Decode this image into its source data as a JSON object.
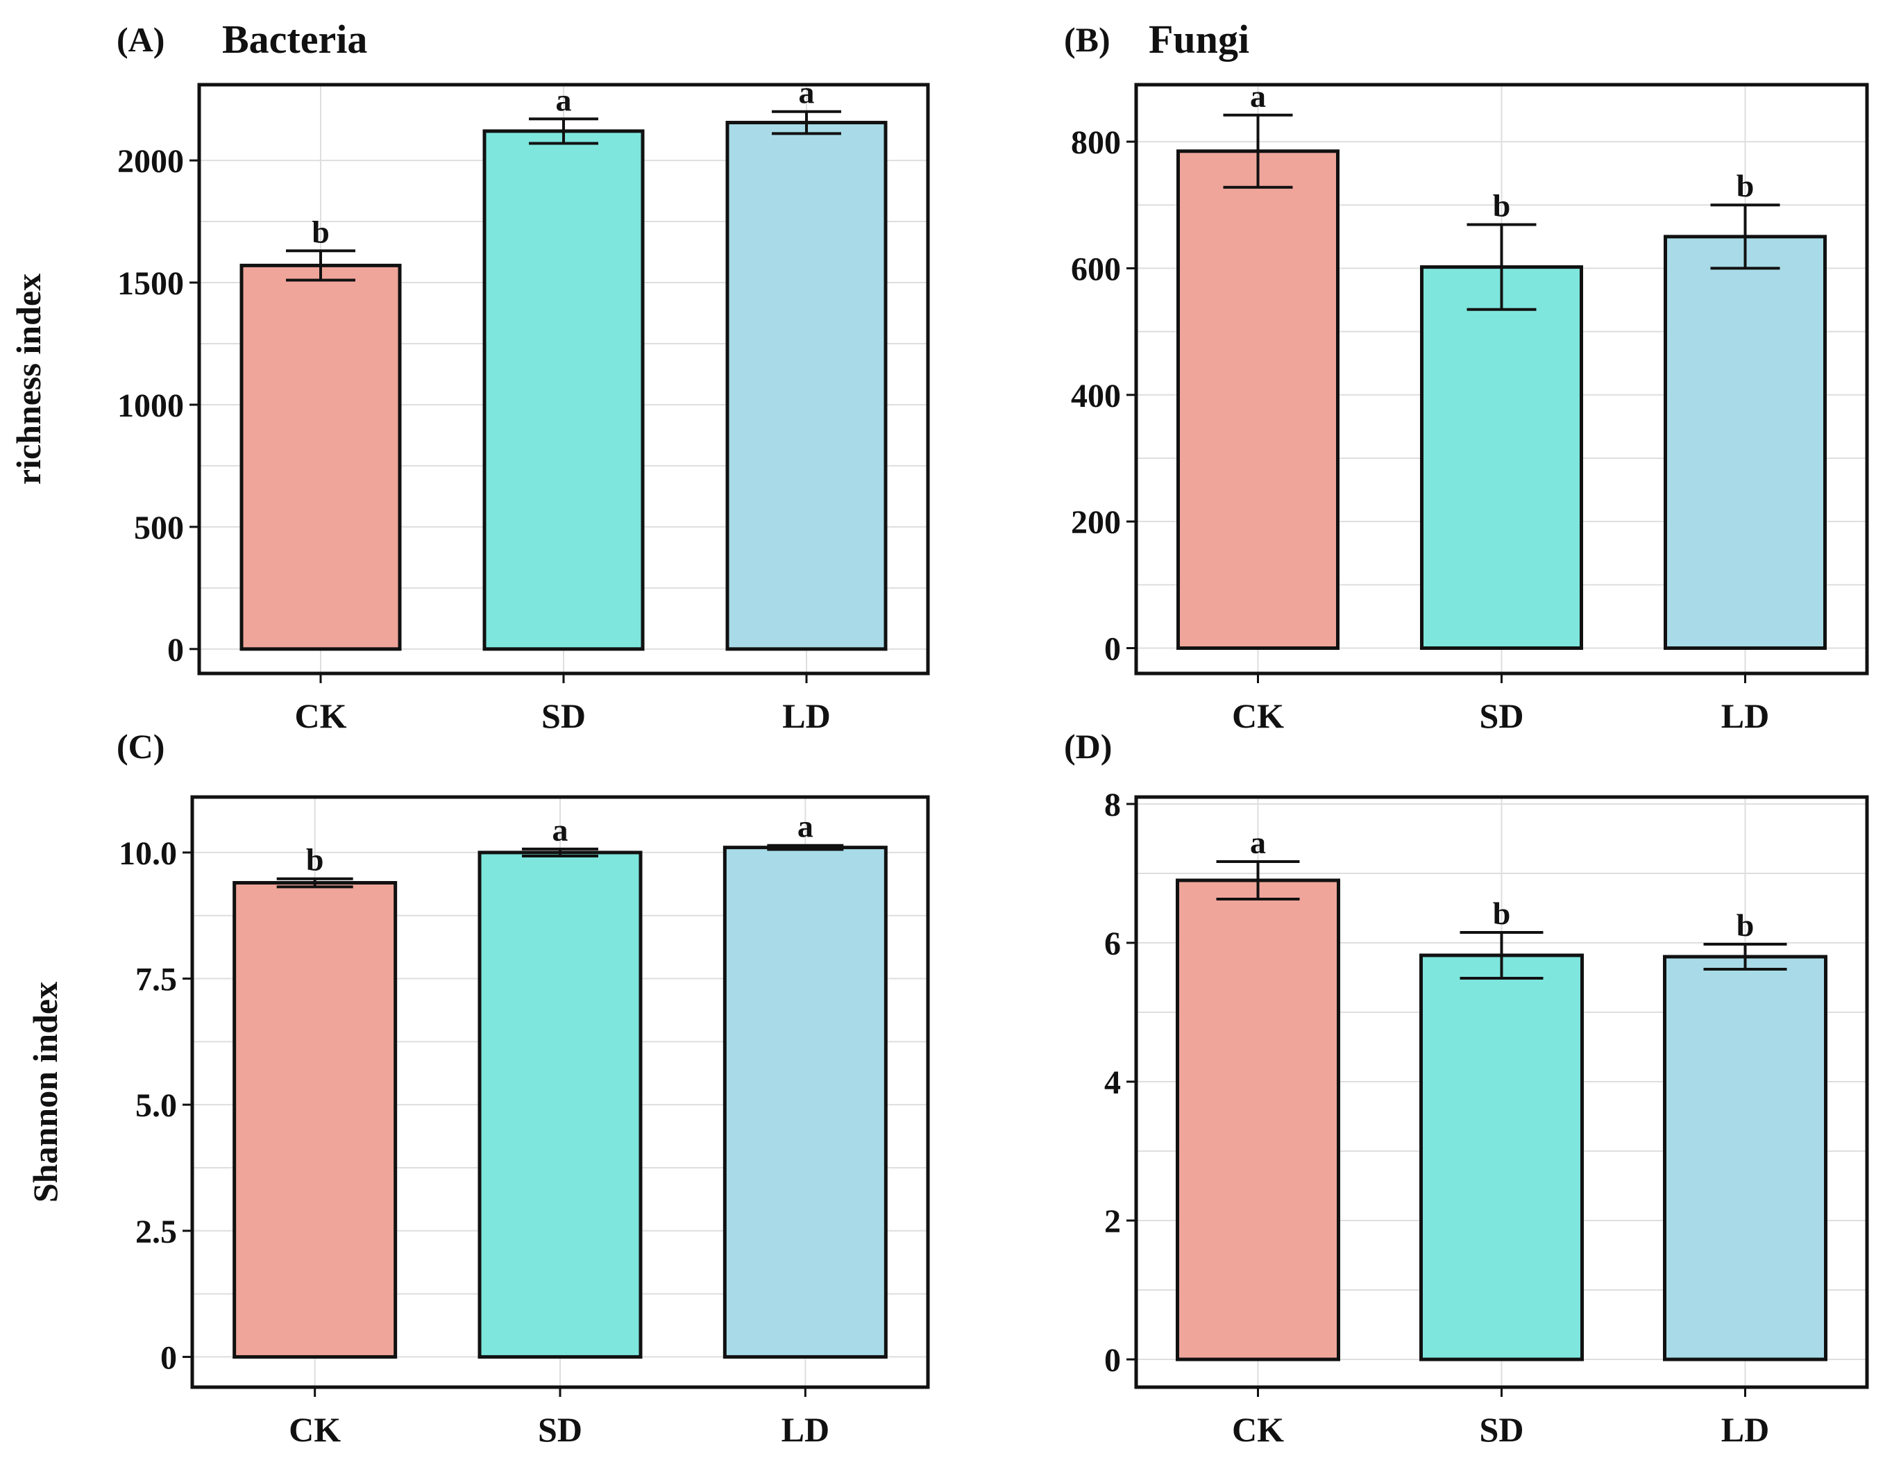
{
  "chart_data": [
    {
      "type": "bar",
      "panel": "(A)",
      "title": "Bacteria",
      "xlabel": "",
      "ylabel": "richness index",
      "categories": [
        "CK",
        "SD",
        "LD"
      ],
      "values": [
        1570,
        2120,
        2155
      ],
      "errors": [
        60,
        50,
        45
      ],
      "significance": [
        "b",
        "a",
        "a"
      ],
      "colors": [
        "#f0a59a",
        "#7ee6dd",
        "#a8dbe7"
      ],
      "ylim": [
        -100,
        2310
      ],
      "yticks": [
        0,
        500,
        1000,
        1500,
        2000
      ],
      "ytick_labels": [
        "0",
        "500",
        "1000",
        "1500",
        "2000"
      ]
    },
    {
      "type": "bar",
      "panel": "(B)",
      "title": "Fungi",
      "xlabel": "",
      "ylabel": "",
      "categories": [
        "CK",
        "SD",
        "LD"
      ],
      "values": [
        785,
        602,
        650
      ],
      "errors": [
        57,
        67,
        50
      ],
      "significance": [
        "a",
        "b",
        "b"
      ],
      "colors": [
        "#f0a59a",
        "#7ee6dd",
        "#a8dbe7"
      ],
      "ylim": [
        -40,
        890
      ],
      "yticks": [
        0,
        200,
        400,
        600,
        800
      ],
      "ytick_labels": [
        "0",
        "200",
        "400",
        "600",
        "800"
      ]
    },
    {
      "type": "bar",
      "panel": "(C)",
      "title": "",
      "xlabel": "",
      "ylabel": "Shannon index",
      "categories": [
        "CK",
        "SD",
        "LD"
      ],
      "values": [
        9.4,
        10.0,
        10.1
      ],
      "errors": [
        0.08,
        0.07,
        0.04
      ],
      "significance": [
        "b",
        "a",
        "a"
      ],
      "colors": [
        "#f0a59a",
        "#7ee6dd",
        "#a8dbe7"
      ],
      "ylim": [
        -0.6,
        11.1
      ],
      "yticks": [
        0,
        2.5,
        5.0,
        7.5,
        10.0
      ],
      "ytick_labels": [
        "0",
        "2.5",
        "5.0",
        "7.5",
        "10.0"
      ]
    },
    {
      "type": "bar",
      "panel": "(D)",
      "title": "",
      "xlabel": "",
      "ylabel": "",
      "categories": [
        "CK",
        "SD",
        "LD"
      ],
      "values": [
        6.9,
        5.82,
        5.8
      ],
      "errors": [
        0.27,
        0.33,
        0.18
      ],
      "significance": [
        "a",
        "b",
        "b"
      ],
      "colors": [
        "#f0a59a",
        "#7ee6dd",
        "#a8dbe7"
      ],
      "ylim": [
        -0.4,
        8.1
      ],
      "yticks": [
        0,
        2,
        4,
        6,
        8
      ],
      "ytick_labels": [
        "0",
        "2",
        "4",
        "6",
        "8"
      ]
    }
  ]
}
